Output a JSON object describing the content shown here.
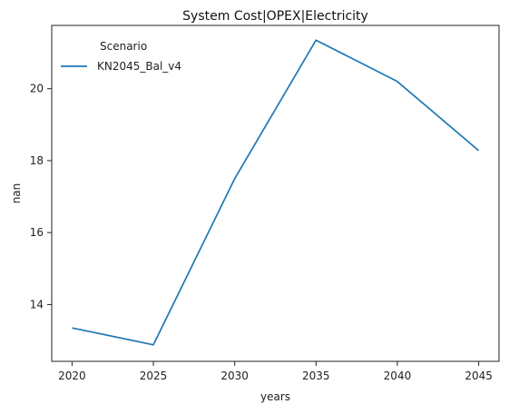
{
  "chart_data": {
    "type": "line",
    "title": "System Cost|OPEX|Electricity",
    "xlabel": "years",
    "ylabel": "nan",
    "x": [
      2020,
      2025,
      2030,
      2035,
      2040,
      2045
    ],
    "x_ticks": [
      "2020",
      "2025",
      "2030",
      "2035",
      "2040",
      "2045"
    ],
    "y_ticks": [
      "14",
      "16",
      "18",
      "20"
    ],
    "xlim": [
      2018.75,
      2046.25
    ],
    "ylim": [
      12.42,
      21.76
    ],
    "grid": false,
    "legend": {
      "title": "Scenario",
      "placement": "top-left"
    },
    "series": [
      {
        "name": "KN2045_Bal_v4",
        "color": "#1f77b4",
        "values": [
          13.35,
          12.88,
          17.5,
          21.35,
          20.2,
          18.28
        ]
      }
    ]
  }
}
